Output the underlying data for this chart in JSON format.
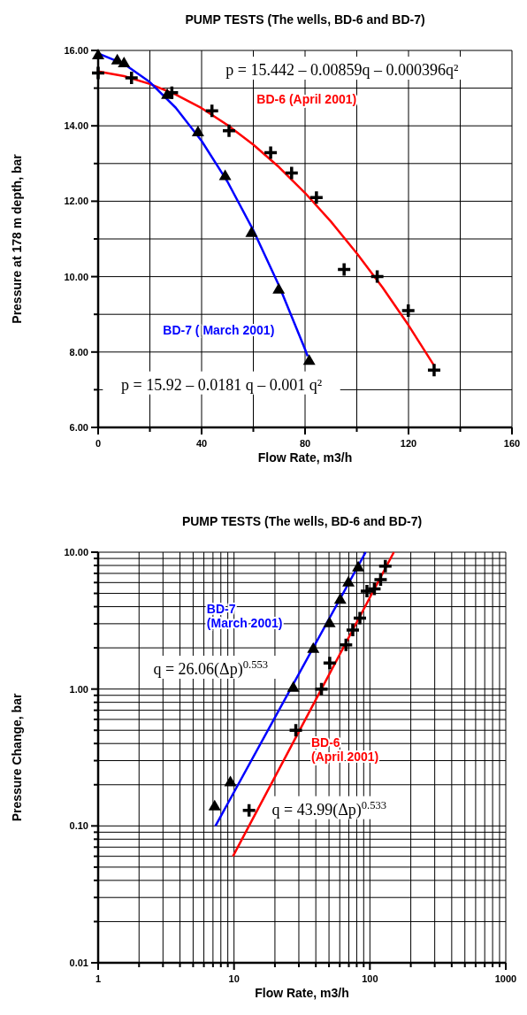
{
  "chart_data": [
    {
      "type": "scatter",
      "title": "PUMP TESTS (The wells, BD-6 and BD-7)",
      "xlabel": "Flow Rate, m3/h",
      "ylabel": "Pressure at 178 m depth, bar",
      "xlim": [
        0,
        160
      ],
      "ylim": [
        6,
        16
      ],
      "grid": true,
      "xticks": [
        0,
        {
          "value": 20,
          "label": null
        },
        40,
        {
          "value": 60,
          "label": null
        },
        80,
        {
          "value": 100,
          "label": null
        },
        120,
        {
          "value": 140,
          "label": null
        },
        160
      ],
      "yticks": [
        {
          "value": 6,
          "label": "6.00"
        },
        {
          "value": 7,
          "label": null
        },
        {
          "value": 8,
          "label": "8.00"
        },
        {
          "value": 9,
          "label": null
        },
        {
          "value": 10,
          "label": "10.00"
        },
        {
          "value": 11,
          "label": null
        },
        {
          "value": 12,
          "label": "12.00"
        },
        {
          "value": 13,
          "label": null
        },
        {
          "value": 14,
          "label": "14.00"
        },
        {
          "value": 15,
          "label": null
        },
        {
          "value": 16,
          "label": "16.00"
        }
      ],
      "series": [
        {
          "type": "line",
          "name": "BD-6 (April 2001)",
          "color": "#ff0000",
          "x": [
            0,
            10,
            20,
            30,
            40,
            50,
            60,
            70,
            80,
            90,
            100,
            110,
            120,
            130
          ],
          "values": [
            15.44,
            15.32,
            15.11,
            14.83,
            14.47,
            14.02,
            13.5,
            12.9,
            12.22,
            11.46,
            10.62,
            9.71,
            8.71,
            7.63
          ]
        },
        {
          "type": "line",
          "name": "BD-7 ( March 2001)",
          "color": "#0000ff",
          "x": [
            0,
            10,
            20,
            30,
            40,
            50,
            60,
            70,
            80,
            81
          ],
          "values": [
            15.92,
            15.64,
            15.16,
            14.48,
            13.6,
            12.52,
            11.23,
            9.75,
            8.07,
            7.89
          ]
        },
        {
          "marker": "triangle",
          "color": "#000000",
          "x": [
            0,
            7.4,
            10,
            26.7,
            38.6,
            49.1,
            59.3,
            69.8,
            81.6
          ],
          "values": [
            15.88,
            15.75,
            15.67,
            14.83,
            13.84,
            12.68,
            11.17,
            9.67,
            7.78
          ]
        },
        {
          "marker": "cross",
          "color": "#000000",
          "x": [
            0,
            12.9,
            28.5,
            44,
            50.6,
            66.7,
            74.8,
            84.4,
            95.1,
            107.9,
            119.9,
            129.9
          ],
          "values": [
            15.4,
            15.27,
            14.88,
            14.4,
            13.87,
            13.29,
            12.75,
            12.1,
            10.19,
            10.0,
            9.1,
            7.52
          ]
        }
      ],
      "annotations": [
        "p = 15.442 – 0.00859q – 0.000396q²",
        "p = 15.92 – 0.0181 q – 0.001 q²"
      ]
    },
    {
      "type": "scatter",
      "title": "PUMP TESTS (The wells, BD-6 and BD-7)",
      "xlabel": "Flow Rate, m3/h",
      "ylabel": "Pressure Change, bar",
      "log": "xy",
      "xlim": [
        1,
        1000
      ],
      "ylim": [
        0.01,
        10
      ],
      "grid": true,
      "xticks": [
        1,
        {
          "value": 2,
          "label": null
        },
        {
          "value": 3,
          "label": null
        },
        {
          "value": 4,
          "label": null
        },
        {
          "value": 5,
          "label": null
        },
        {
          "value": 6,
          "label": null
        },
        {
          "value": 7,
          "label": null
        },
        {
          "value": 8,
          "label": null
        },
        {
          "value": 9,
          "label": null
        },
        10,
        {
          "value": 20,
          "label": null
        },
        {
          "value": 30,
          "label": null
        },
        {
          "value": 40,
          "label": null
        },
        {
          "value": 50,
          "label": null
        },
        {
          "value": 60,
          "label": null
        },
        {
          "value": 70,
          "label": null
        },
        {
          "value": 80,
          "label": null
        },
        {
          "value": 90,
          "label": null
        },
        100,
        {
          "value": 200,
          "label": null
        },
        {
          "value": 300,
          "label": null
        },
        {
          "value": 400,
          "label": null
        },
        {
          "value": 500,
          "label": null
        },
        {
          "value": 600,
          "label": null
        },
        {
          "value": 700,
          "label": null
        },
        {
          "value": 800,
          "label": null
        },
        {
          "value": 900,
          "label": null
        },
        1000
      ],
      "yticks": [
        0.01,
        {
          "value": 0.02,
          "label": null
        },
        {
          "value": 0.03,
          "label": null
        },
        {
          "value": 0.04,
          "label": null
        },
        {
          "value": 0.05,
          "label": null
        },
        {
          "value": 0.06,
          "label": null
        },
        {
          "value": 0.07,
          "label": null
        },
        {
          "value": 0.08,
          "label": null
        },
        {
          "value": 0.09,
          "label": null
        },
        {
          "value": 0.1,
          "label": "0.10"
        },
        {
          "value": 0.2,
          "label": null
        },
        {
          "value": 0.3,
          "label": null
        },
        {
          "value": 0.4,
          "label": null
        },
        {
          "value": 0.5,
          "label": null
        },
        {
          "value": 0.6,
          "label": null
        },
        {
          "value": 0.7,
          "label": null
        },
        {
          "value": 0.8,
          "label": null
        },
        {
          "value": 0.9,
          "label": null
        },
        {
          "value": 1,
          "label": "1.00"
        },
        {
          "value": 2,
          "label": null
        },
        {
          "value": 3,
          "label": null
        },
        {
          "value": 4,
          "label": null
        },
        {
          "value": 5,
          "label": null
        },
        {
          "value": 6,
          "label": null
        },
        {
          "value": 7,
          "label": null
        },
        {
          "value": 8,
          "label": null
        },
        {
          "value": 9,
          "label": null
        },
        {
          "value": 10,
          "label": "10.00"
        }
      ],
      "series": [
        {
          "type": "line",
          "name": "BD-7\n(March 2001)",
          "color": "#0000ff",
          "x": [
            7.3,
            26.06,
            93.1
          ],
          "values": [
            0.1,
            1,
            10
          ]
        },
        {
          "type": "line",
          "name": "BD-6\n(April 2001)",
          "color": "#ff0000",
          "x": [
            9.82,
            43.99,
            150.1
          ],
          "values": [
            0.06,
            1,
            10
          ]
        },
        {
          "marker": "triangle",
          "color": "#000000",
          "x": [
            7.2,
            9.4,
            27.3,
            38.3,
            50.4,
            60.5,
            69.5,
            82
          ],
          "values": [
            0.14,
            0.21,
            1.03,
            1.98,
            3.05,
            4.53,
            6.04,
            7.8
          ]
        },
        {
          "marker": "cross",
          "color": "#000000",
          "x": [
            12.9,
            28.5,
            44,
            50.6,
            66.7,
            74.8,
            84.4,
            95.1,
            107.9,
            119.9,
            129.9
          ],
          "values": [
            0.13,
            0.5,
            1.0,
            1.55,
            2.1,
            2.7,
            3.3,
            5.2,
            5.4,
            6.3,
            7.9
          ]
        }
      ],
      "annotations": [
        "q = 26.06(Δp)$^{0.553}$",
        "q = 43.99(Δp)$^{0.533}$"
      ]
    }
  ]
}
